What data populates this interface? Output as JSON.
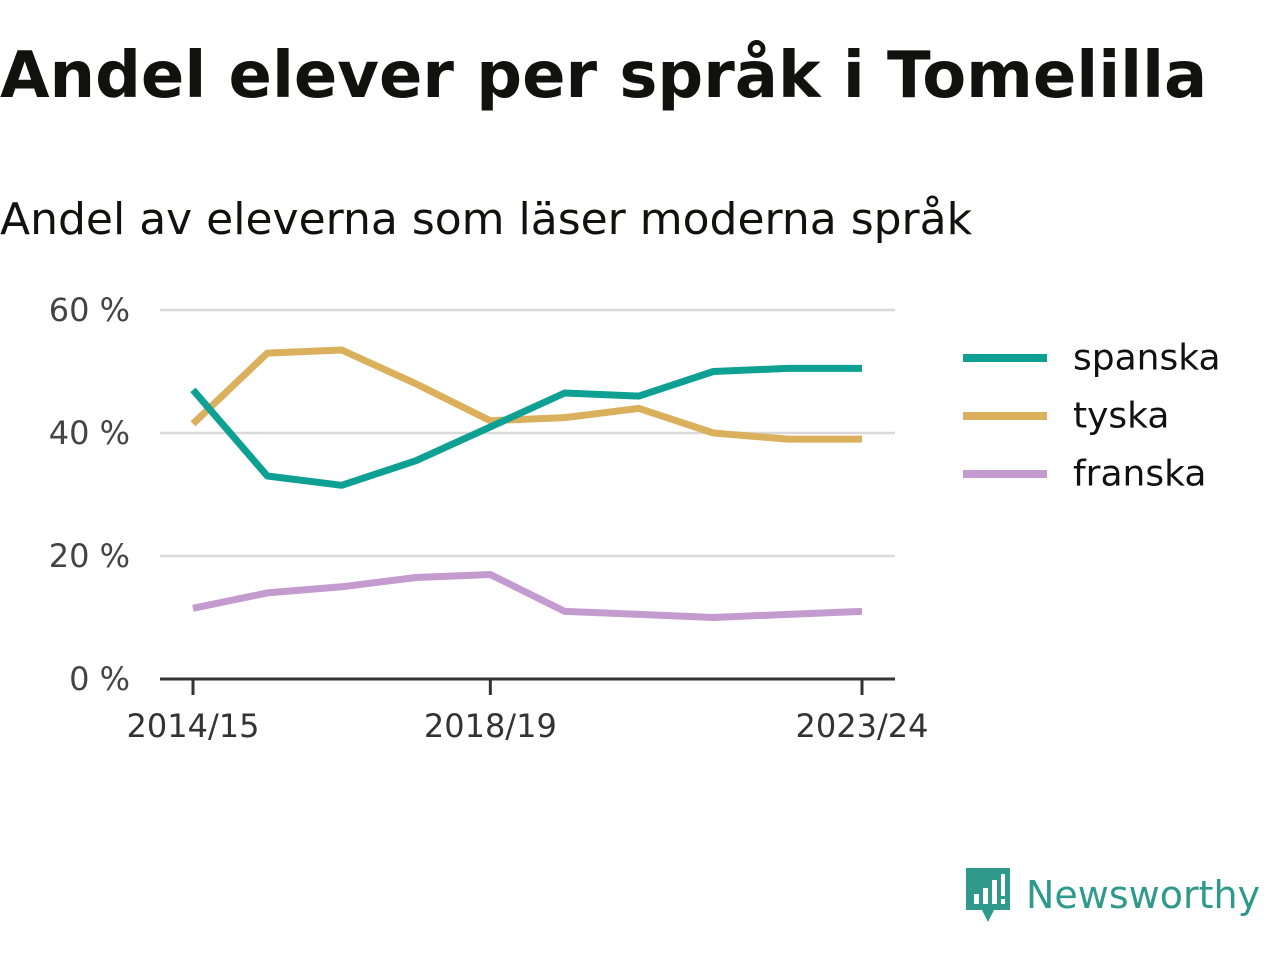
{
  "title": "Andel elever per språk i Tomelilla",
  "subtitle": "Andel av eleverna som läser moderna språk",
  "chart_data": {
    "type": "line",
    "x": [
      "2014/15",
      "2015/16",
      "2016/17",
      "2017/18",
      "2018/19",
      "2019/20",
      "2020/21",
      "2021/22",
      "2022/23",
      "2023/24"
    ],
    "x_tick_labels": [
      "2014/15",
      "2018/19",
      "2023/24"
    ],
    "y_ticks": [
      0,
      20,
      40,
      60
    ],
    "y_tick_labels": [
      "0 %",
      "20 %",
      "40 %",
      "60 %"
    ],
    "ylim": [
      0,
      60
    ],
    "grid": true,
    "legend_position": "right",
    "series": [
      {
        "name": "spanska",
        "color": "#0fa094",
        "values": [
          47,
          33,
          31.5,
          35.5,
          41,
          46.5,
          46,
          50,
          50.5,
          50.5
        ]
      },
      {
        "name": "tyska",
        "color": "#dbb05c",
        "values": [
          41.5,
          53,
          53.5,
          48,
          42,
          42.5,
          44,
          40,
          39,
          39
        ]
      },
      {
        "name": "franska",
        "color": "#c49bcf",
        "values": [
          11.5,
          14,
          15,
          16.5,
          17,
          11,
          10.5,
          10,
          10.5,
          11
        ]
      }
    ]
  },
  "brand": {
    "name": "Newsworthy",
    "icon": "newsworthy-logo-icon",
    "color": "#2f9a8c"
  }
}
